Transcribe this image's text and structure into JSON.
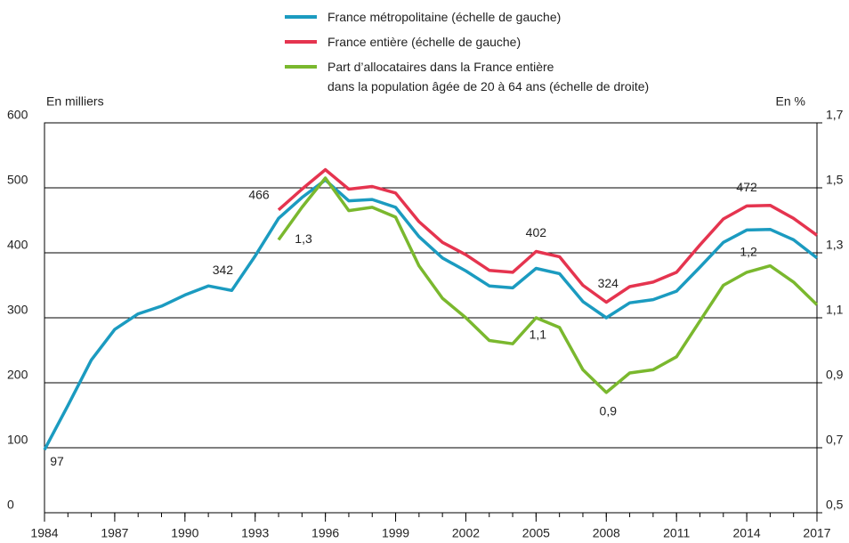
{
  "chart_data": {
    "type": "line",
    "y_label": "En milliers",
    "y2_label": "En %",
    "x": [
      1984,
      1985,
      1986,
      1987,
      1988,
      1989,
      1990,
      1991,
      1992,
      1993,
      1994,
      1995,
      1996,
      1997,
      1998,
      1999,
      2000,
      2001,
      2002,
      2003,
      2004,
      2005,
      2006,
      2007,
      2008,
      2009,
      2010,
      2011,
      2012,
      2013,
      2014,
      2015,
      2016,
      2017
    ],
    "xlim": [
      1984,
      2017
    ],
    "xticks": [
      1984,
      1987,
      1990,
      1993,
      1996,
      1999,
      2002,
      2005,
      2008,
      2011,
      2014,
      2017
    ],
    "ylim": [
      0,
      600
    ],
    "yticks": [
      0,
      100,
      200,
      300,
      400,
      500,
      600
    ],
    "y2lim": [
      0.5,
      1.7
    ],
    "y2ticks": [
      {
        "value": 0.5,
        "label": "0,5"
      },
      {
        "value": 0.7,
        "label": "0,7"
      },
      {
        "value": 0.9,
        "label": "0,9"
      },
      {
        "value": 1.1,
        "label": "1,1"
      },
      {
        "value": 1.3,
        "label": "1,3"
      },
      {
        "value": 1.5,
        "label": "1,5"
      },
      {
        "value": 1.7,
        "label": "1,7"
      }
    ],
    "grid": true,
    "series": [
      {
        "name": "France métropolitaine (échelle de gauche)",
        "color": "#1b9bc0",
        "values": [
          97,
          165,
          235,
          282,
          306,
          318,
          335,
          349,
          342,
          395,
          453,
          485,
          512,
          480,
          482,
          470,
          425,
          392,
          372,
          349,
          346,
          376,
          368,
          325,
          300,
          323,
          328,
          341,
          378,
          416,
          435,
          436,
          420,
          392
        ],
        "value_labels": {
          "0": "97",
          "8": "342"
        }
      },
      {
        "name": "France entière (échelle de gauche)",
        "color": "#e5344f",
        "values": [
          null,
          null,
          null,
          null,
          null,
          null,
          null,
          null,
          null,
          null,
          466,
          498,
          528,
          498,
          502,
          492,
          448,
          416,
          397,
          373,
          370,
          402,
          394,
          350,
          324,
          348,
          355,
          370,
          412,
          452,
          472,
          473,
          453,
          427
        ],
        "value_labels": {
          "10": "466",
          "21": "402",
          "24": "324",
          "30": "472"
        }
      },
      {
        "name": "Part d’allocataires dans la France entière\ndans la population âgée de 20 à 64 ans (échelle de droite)",
        "color": "#7ab82e",
        "axis": "y2",
        "values": [
          null,
          null,
          null,
          null,
          null,
          null,
          null,
          null,
          null,
          null,
          1.34,
          1.44,
          1.53,
          1.43,
          1.44,
          1.41,
          1.26,
          1.16,
          1.1,
          1.03,
          1.02,
          1.1,
          1.07,
          0.94,
          0.87,
          0.93,
          0.94,
          0.98,
          1.09,
          1.2,
          1.24,
          1.26,
          1.21,
          1.14
        ],
        "value_labels": {
          "10": "1,3",
          "21": "1,1",
          "24": "0,9",
          "30": "1,2"
        }
      }
    ]
  }
}
